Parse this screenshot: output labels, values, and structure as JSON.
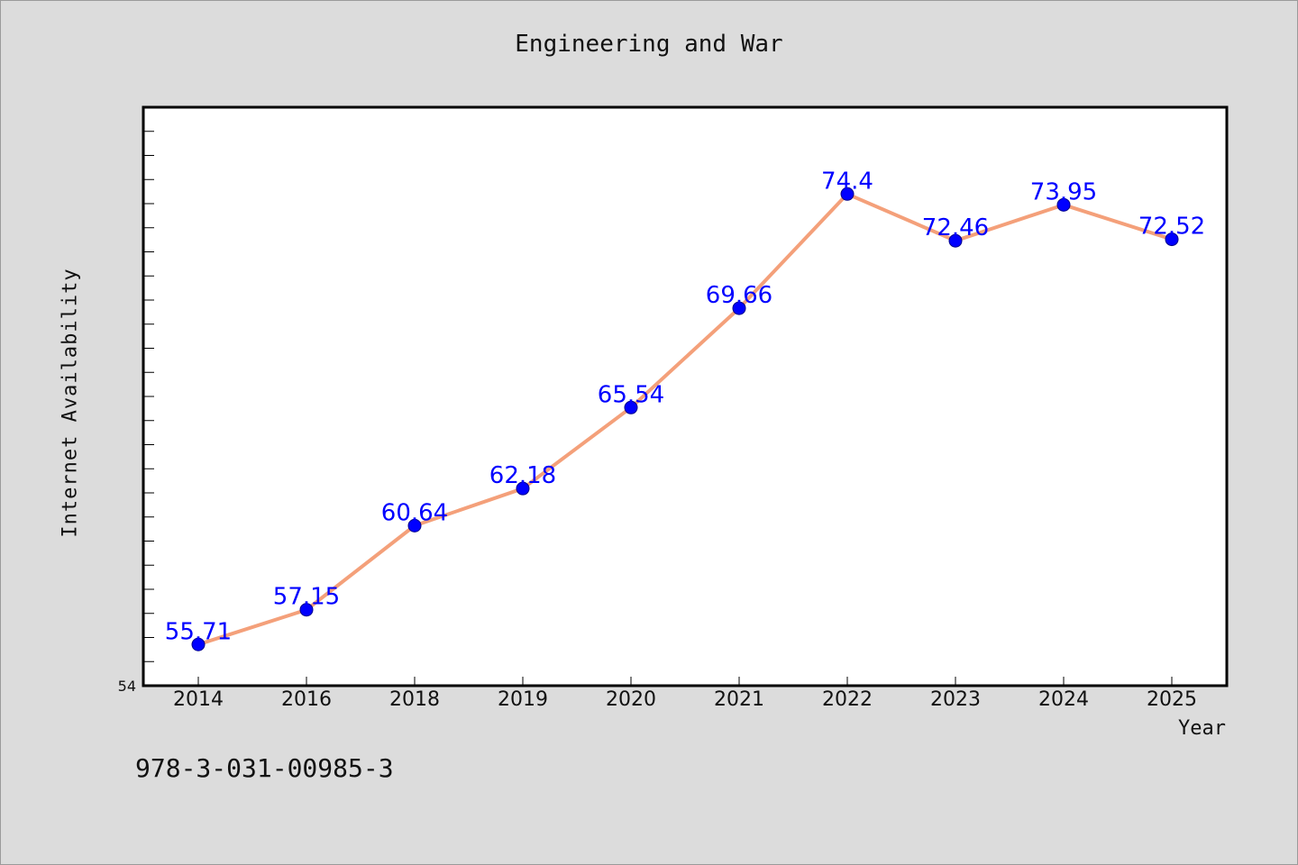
{
  "chart_data": {
    "type": "line",
    "title": "Engineering and War",
    "xlabel": "Year",
    "ylabel": "Internet Availability",
    "categories": [
      "2014",
      "2016",
      "2018",
      "2019",
      "2020",
      "2021",
      "2022",
      "2023",
      "2024",
      "2025"
    ],
    "series": [
      {
        "values": [
          55.71,
          57.15,
          60.64,
          62.18,
          65.54,
          69.66,
          74.4,
          72.46,
          73.95,
          72.52
        ],
        "data_labels": [
          "55.71",
          "57.15",
          "60.64",
          "62.18",
          "65.54",
          "69.66",
          "74.4",
          "72.46",
          "73.95",
          "72.52"
        ],
        "line_color": "#f4a07a",
        "marker_color": "#0000ff"
      }
    ],
    "ylim": [
      54,
      78
    ],
    "y_tick_labels": [
      "54"
    ],
    "y_minor_tick_step": 1,
    "grid": false,
    "plot_background": "#ffffff",
    "figure_background": "#dcdcdc"
  },
  "footer": {
    "isbn": "978-3-031-00985-3"
  }
}
